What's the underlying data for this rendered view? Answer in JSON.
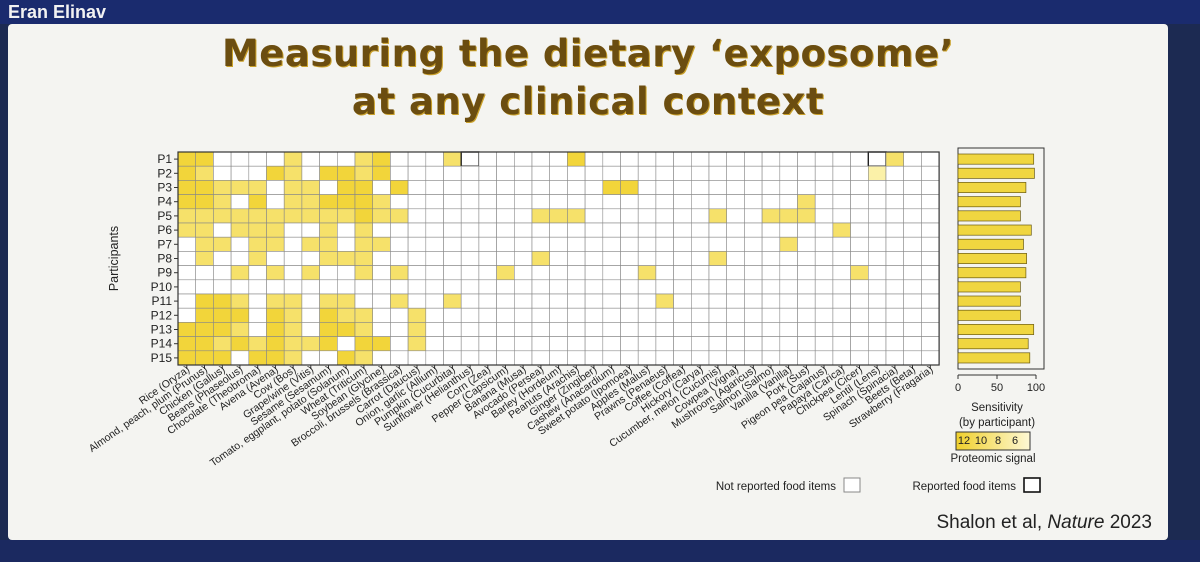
{
  "header": {
    "speaker": "Eran Elinav"
  },
  "slide": {
    "title_line1": "Measuring the dietary ‘exposome’",
    "title_line2": "at any clinical context",
    "citation_prefix": "Shalon et al, ",
    "citation_journal": "Nature",
    "citation_year": " 2023"
  },
  "colors": {
    "signal_strong": "#f2d53a",
    "signal_weak": "#fbf1a8",
    "grid": "#666666",
    "bar": "#f0d640",
    "title": "#6b4d10"
  },
  "chart_data": [
    {
      "type": "heatmap",
      "ylabel": "Participants",
      "participants": [
        "P1",
        "P2",
        "P3",
        "P4",
        "P5",
        "P6",
        "P7",
        "P8",
        "P9",
        "P10",
        "P11",
        "P12",
        "P13",
        "P14",
        "P15"
      ],
      "food_items": [
        "Rice (Oryza)",
        "Almond, peach, plum (Prunus)",
        "Chicken (Gallus)",
        "Beans (Phaseolus)",
        "Chocolate (Theobroma)",
        "Avena (Avena)",
        "Cow (Bos)",
        "Grape/wine (Vitis)",
        "Sesame (Sesamum)",
        "Tomato, eggplant, potato (Solanum)",
        "Wheat (Triticum)",
        "Soybean (Glycine)",
        "Broccoli, brussels (Brassica)",
        "Carrot (Daucus)",
        "Onion, garlic (Allium)",
        "Pumpkin (Cucurbita)",
        "Sunflower (Helianthus)",
        "Corn (Zea)",
        "Pepper (Capsicum)",
        "Banana (Musa)",
        "Avocado (Persea)",
        "Barley (Hordeum)",
        "Peanuts (Arachis)",
        "Ginger (Zingiber)",
        "Cashew (Anacardium)",
        "Sweet potato (Ipomoea)",
        "Apples (Malus)",
        "Prawns (Penaeus)",
        "Coffee (Coffea)",
        "Hickory (Carya)",
        "Cucumber, melon (Cucumis)",
        "Cowpea (Vigna)",
        "Mushroom (Agaricus)",
        "Salmon (Salmo)",
        "Vanilla (Vanilla)",
        "Pork (Sus)",
        "Pigeon pea (Cajanus)",
        "Papaya (Carica)",
        "Chickpea (Cicer)",
        "Lentil (Lens)",
        "Spinach (Spinacia)",
        "Beets (Beta)",
        "Strawberry (Fragaria)"
      ],
      "signal_levels": [
        "high",
        "medium",
        "low"
      ],
      "signal": [
        "hh....m...mh...m......h.................m..",
        "hm...hm.hhmh...........................l...",
        "hhmmm.mm.hh.h...........hh..................",
        "hhm.h.mmhhhm.......................m.......",
        "mmmmmmmmmmhmm.......mmm.......m..mmm.......",
        "mm.mmm..m.m..........................m...",
        ".mm.mm.mm.mm......................m.......",
        ".m..m...mmm.........m.........m.........",
        "...m.m.m..m.m.....m.......m...........m.",
        "...........................................",
        ".hhm.mm.mm..m..m...........m...............",
        ".hhh.hm.hmm..m.............................",
        "hhhm.hm.hhm..m.............................",
        "hhmhmhmmh.hh.m.............................",
        "hhh.hhm..hm................................"
      ],
      "reported": [
        "................m......................m...",
        "...........................................",
        "...........................................",
        "...........................................",
        "...........................................",
        "...........................................",
        "...........................................",
        "...........................................",
        "...........................................",
        "...........................................",
        "...........................................",
        "...........................................",
        "...........................................",
        "...........................................",
        "..........................................."
      ],
      "legend": {
        "not_reported": "Not reported food items",
        "reported": "Reported food items",
        "proteomic_ticks": [
          "12",
          "10",
          "8",
          "6"
        ],
        "proteomic_label": "Proteomic signal"
      }
    },
    {
      "type": "bar",
      "orientation": "horizontal",
      "categories": [
        "P1",
        "P2",
        "P3",
        "P4",
        "P5",
        "P6",
        "P7",
        "P8",
        "P9",
        "P10",
        "P11",
        "P12",
        "P13",
        "P14",
        "P15"
      ],
      "values": [
        97,
        98,
        87,
        80,
        80,
        94,
        84,
        88,
        87,
        80,
        80,
        80,
        97,
        90,
        92
      ],
      "xlabel_line1": "Sensitivity",
      "xlabel_line2": "(by participant)",
      "xticks": [
        "0",
        "50",
        "100"
      ],
      "xlim": [
        0,
        100
      ]
    }
  ]
}
